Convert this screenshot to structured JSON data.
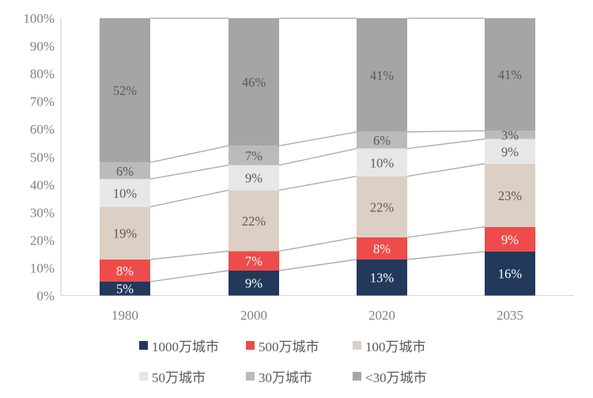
{
  "chart_data": {
    "type": "bar",
    "variant": "100%-stacked-column-with-connector-lines",
    "title": "",
    "xlabel": "",
    "ylabel": "",
    "categories": [
      "1980",
      "2000",
      "2020",
      "2035"
    ],
    "series": [
      {
        "name": "1000万城市",
        "color": "#22395B",
        "label_color": "#FFFFFF",
        "values": [
          5,
          9,
          13,
          16
        ]
      },
      {
        "name": "500万城市",
        "color": "#EE4B4B",
        "label_color": "#FFFFFF",
        "values": [
          8,
          7,
          8,
          9
        ]
      },
      {
        "name": "100万城市",
        "color": "#DCCFC4",
        "label_color": "#595959",
        "values": [
          19,
          22,
          22,
          23
        ]
      },
      {
        "name": "50万城市",
        "color": "#E8E7E7",
        "label_color": "#595959",
        "values": [
          10,
          9,
          10,
          9
        ]
      },
      {
        "name": "30万城市",
        "color": "#BCBBBB",
        "label_color": "#595959",
        "values": [
          6,
          7,
          6,
          3
        ]
      },
      {
        "name": "<30万城市",
        "color": "#A6A5A5",
        "label_color": "#595959",
        "values": [
          52,
          46,
          41,
          41
        ]
      }
    ],
    "value_suffix": "%",
    "y_ticks": [
      "0%",
      "10%",
      "20%",
      "30%",
      "40%",
      "50%",
      "60%",
      "70%",
      "80%",
      "90%",
      "100%"
    ],
    "ylim": [
      0,
      100
    ],
    "grid": "off",
    "legend_position": "bottom",
    "colors": {
      "axis_line": "#C9C8C8",
      "baseline": "#D9D9D9",
      "tick_label": "#7F7F7F",
      "category_label": "#7F7F7F",
      "connector_line": "#A8A7A7",
      "legend_text": "#595959",
      "background": "#FFFFFF"
    }
  }
}
